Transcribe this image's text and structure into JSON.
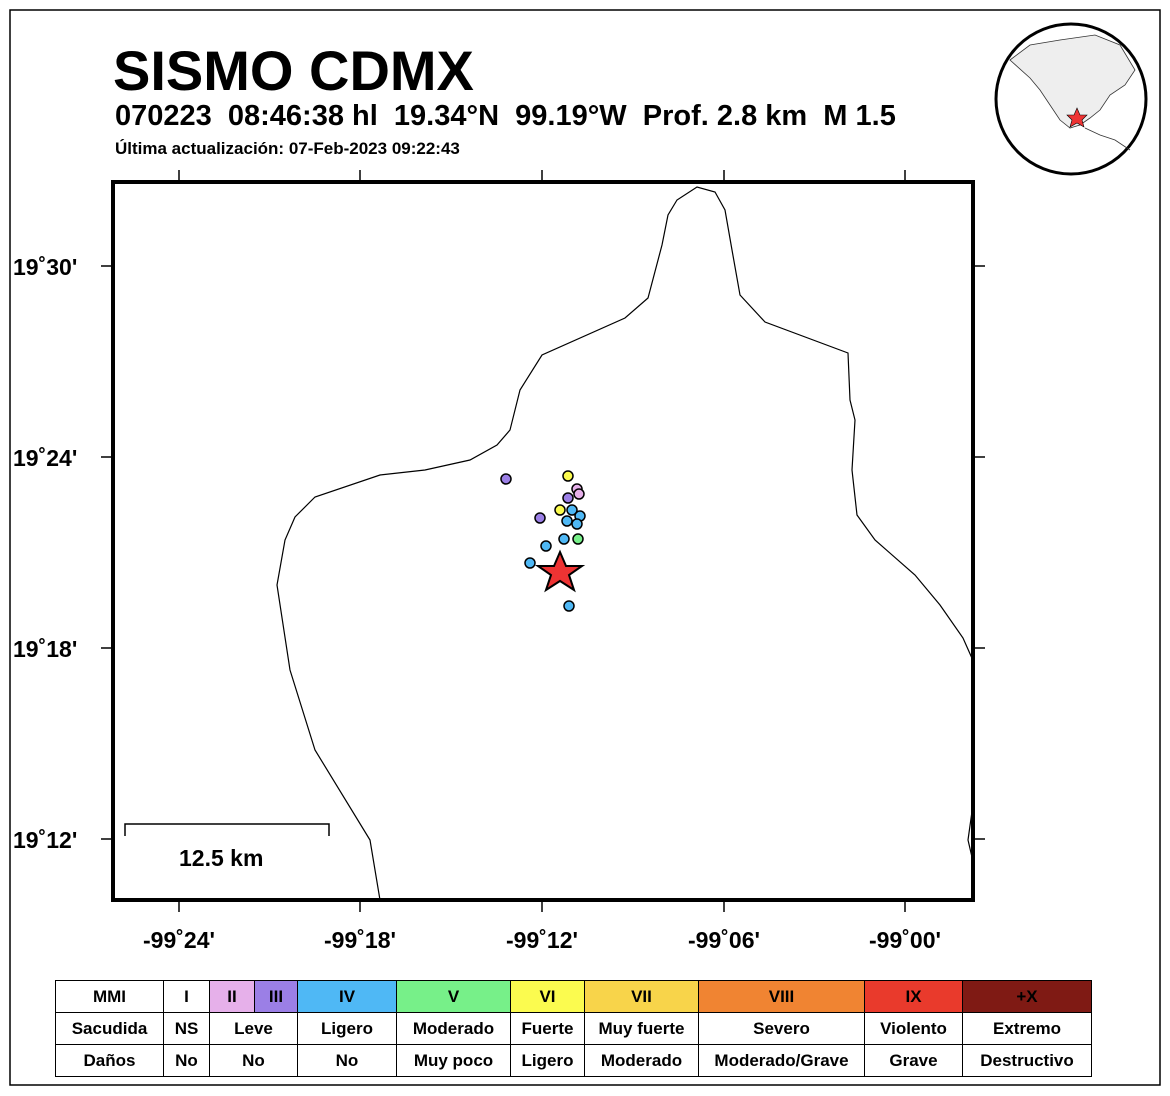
{
  "header": {
    "title": "SISMO CDMX",
    "details": "070223  08:46:38 hl  19.34°N  99.19°W  Prof. 2.8 km  M 1.5",
    "update": "Última actualización: 07-Feb-2023 09:22:43"
  },
  "axes": {
    "x_labels": [
      "-99˚24'",
      "-99˚18'",
      "-99˚12'",
      "-99˚06'",
      "-99˚00'"
    ],
    "y_labels": [
      "19˚30'",
      "19˚24'",
      "19˚18'",
      "19˚12'"
    ]
  },
  "scale_bar": "12.5 km",
  "legend": {
    "rows": [
      [
        "MMI",
        "I",
        "II",
        "III",
        "IV",
        "V",
        "VI",
        "VII",
        "VIII",
        "IX",
        "+X"
      ],
      [
        "Sacudida",
        "NS",
        "Leve",
        "Ligero",
        "Moderado",
        "Fuerte",
        "Muy fuerte",
        "Severo",
        "Violento",
        "Extremo"
      ],
      [
        "Daños",
        "No",
        "No",
        "No",
        "Muy poco",
        "Ligero",
        "Moderado",
        "Moderado/Grave",
        "Grave",
        "Destructivo"
      ]
    ]
  }
}
